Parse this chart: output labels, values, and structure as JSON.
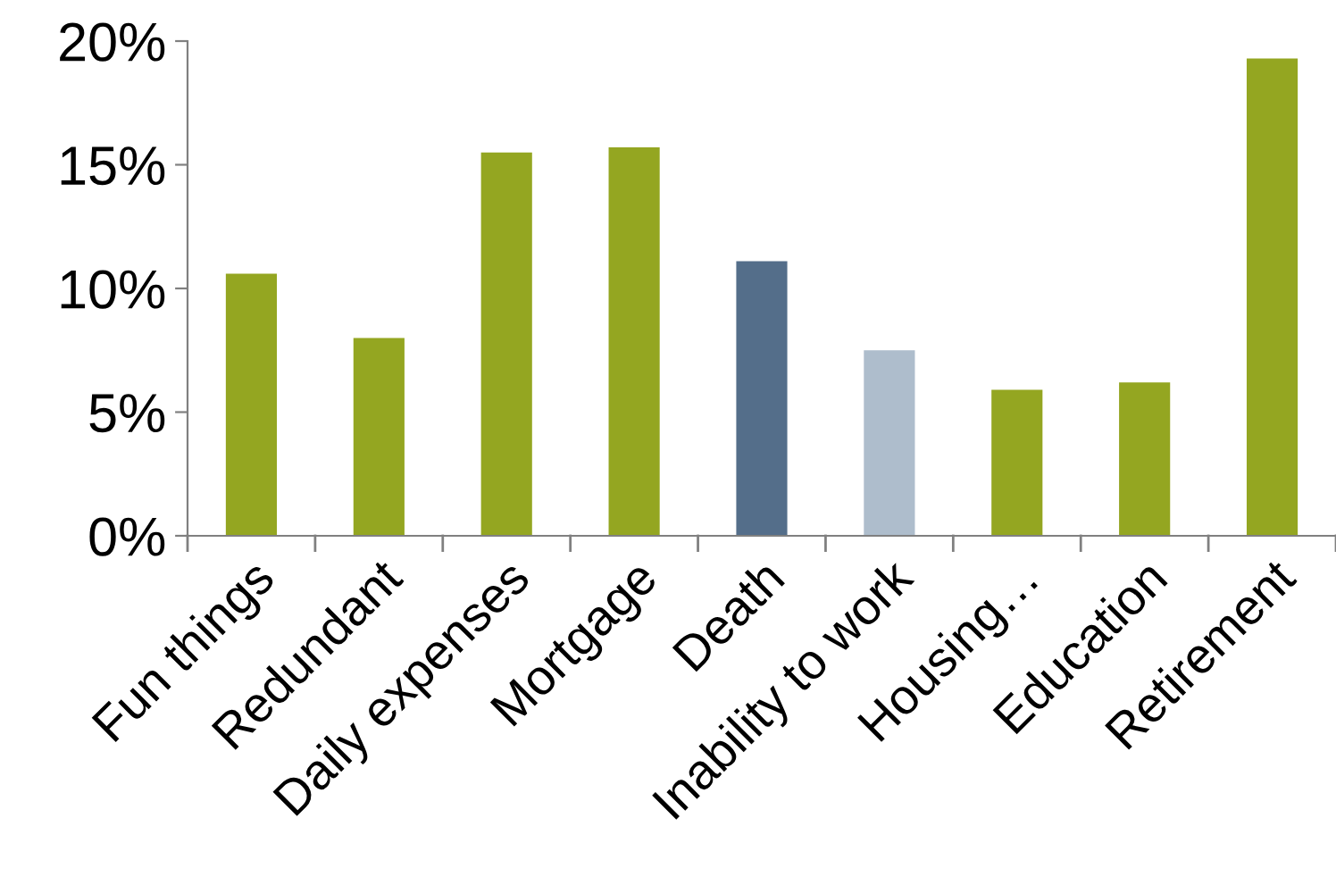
{
  "chart_data": {
    "type": "bar",
    "categories": [
      "Fun things",
      "Redundant",
      "Daily expenses",
      "Mortgage",
      "Death",
      "Inability to work",
      "Housing…",
      "Education",
      "Retirement"
    ],
    "values": [
      10.6,
      8.0,
      15.5,
      15.7,
      11.1,
      7.5,
      5.9,
      6.2,
      19.3
    ],
    "colors": [
      "#94a621",
      "#94a621",
      "#94a621",
      "#94a621",
      "#546e8a",
      "#aebdcc",
      "#94a621",
      "#94a621",
      "#94a621"
    ],
    "ylim": [
      0,
      20
    ],
    "yticks": [
      {
        "value": 0,
        "label": "0%"
      },
      {
        "value": 5,
        "label": "5%"
      },
      {
        "value": 10,
        "label": "10%"
      },
      {
        "value": 15,
        "label": "15%"
      },
      {
        "value": 20,
        "label": "20%"
      }
    ],
    "grid": false,
    "legend": false
  }
}
